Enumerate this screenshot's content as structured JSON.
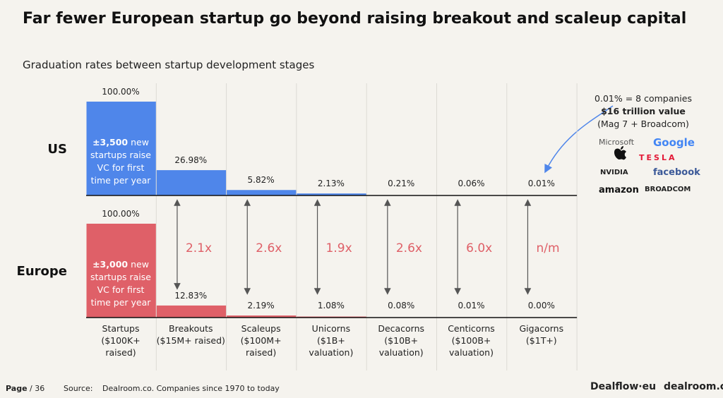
{
  "chart_data": {
    "type": "bar",
    "title": "Far fewer European startup go beyond raising breakout and scaleup capital",
    "subtitle": "Graduation rates between startup development stages",
    "categories": [
      "Startups ($100K+ raised)",
      "Breakouts ($15M+ raised)",
      "Scaleups ($100M+ raised)",
      "Unicorns ($1B+ valuation)",
      "Decacorns ($10B+ valuation)",
      "Centicorns ($100B+ valuation)",
      "Gigacorns ($1T+)"
    ],
    "series": [
      {
        "name": "US",
        "color": "#4f86ea",
        "values": [
          100,
          26.98,
          5.82,
          2.13,
          0.21,
          0.06,
          0.01
        ],
        "value_labels": [
          "100.00%",
          "26.98%",
          "5.82%",
          "2.13%",
          "0.21%",
          "0.06%",
          "0.01%"
        ],
        "note": {
          "bold": "±3,500",
          "text": "new startups raise VC for first time per year"
        }
      },
      {
        "name": "Europe",
        "color": "#df6068",
        "values": [
          100,
          12.83,
          2.19,
          1.08,
          0.08,
          0.01,
          0.0
        ],
        "value_labels": [
          "100.00%",
          "12.83%",
          "2.19%",
          "1.08%",
          "0.08%",
          "0.01%",
          "0.00%"
        ],
        "note": {
          "bold": "±3,000",
          "text": "new startups raise VC for first time per year"
        }
      }
    ],
    "ylim": [
      0,
      100
    ],
    "ratios": [
      "2.1x",
      "2.6x",
      "1.9x",
      "2.6x",
      "6.0x",
      "n/m"
    ],
    "callout": {
      "line1": "0.01% = 8 companies",
      "line2": "$16 trillion value",
      "line3": "(Mag 7 + Broadcom)"
    },
    "logos": [
      "Microsoft",
      "Google",
      "TESLA",
      "NVIDIA",
      "facebook",
      "amazon",
      "BROADCOM"
    ]
  },
  "footer": {
    "page": "Page",
    "page_total": "/ 36",
    "source_label": "Source:",
    "source": "Dealroom.co. Companies since 1970 to today",
    "brand1": "Dealflow·eu",
    "brand2": "dealroom.co"
  }
}
